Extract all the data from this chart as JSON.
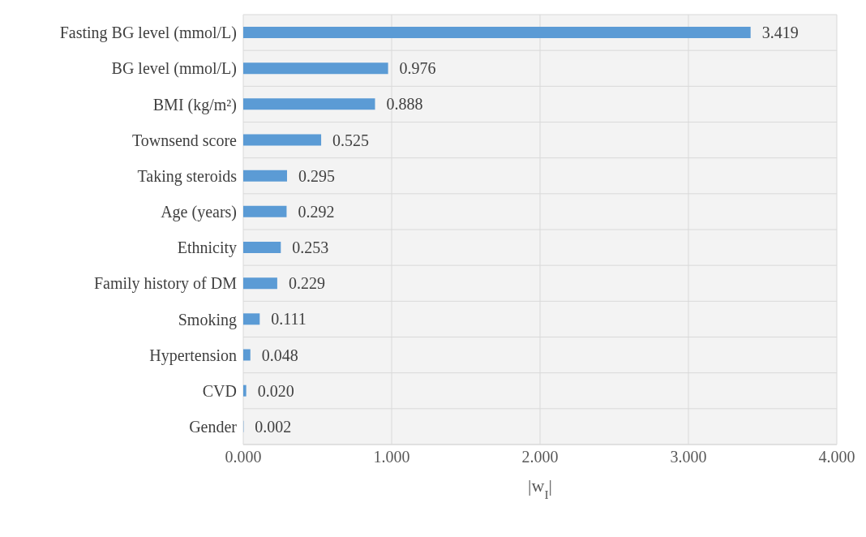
{
  "chart_data": {
    "type": "bar",
    "orientation": "horizontal",
    "xlabel": "|w$_{I}$|",
    "categories": [
      "Fasting BG level (mmol/L)",
      "BG level (mmol/L)",
      "BMI (kg/m²)",
      "Townsend score",
      "Taking steroids",
      "Age (years)",
      "Ethnicity",
      "Family history of DM",
      "Smoking",
      "Hypertension",
      "CVD",
      "Gender"
    ],
    "values": [
      3.419,
      0.976,
      0.888,
      0.525,
      0.295,
      0.292,
      0.253,
      0.229,
      0.111,
      0.048,
      0.02,
      0.002
    ],
    "value_labels": [
      "3.419",
      "0.976",
      "0.888",
      "0.525",
      "0.295",
      "0.292",
      "0.253",
      "0.229",
      "0.111",
      "0.048",
      "0.020",
      "0.002"
    ],
    "color": "#5b9bd5",
    "xlim": [
      0,
      4
    ],
    "xticks": [
      {
        "value": 0,
        "label": "0.000"
      },
      {
        "value": 1,
        "label": "1.000"
      },
      {
        "value": 2,
        "label": "2.000"
      },
      {
        "value": 3,
        "label": "3.000"
      },
      {
        "value": 4,
        "label": "4.000"
      }
    ],
    "grid": true
  }
}
